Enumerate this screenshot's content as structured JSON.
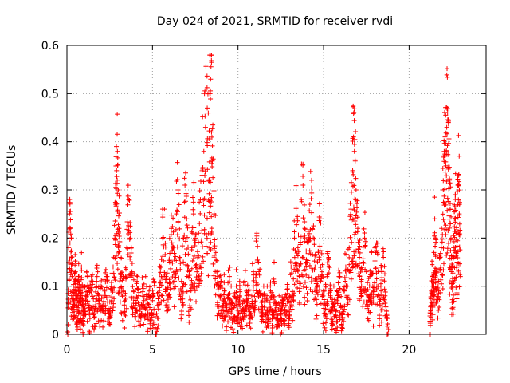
{
  "chart_data": {
    "type": "scatter",
    "title": "Day 024 of 2021, SRMTID for receiver rvdi",
    "xlabel": "GPS time / hours",
    "ylabel": "SRMTID / TECUs",
    "xlim": [
      0,
      24.5
    ],
    "ylim": [
      0,
      0.6
    ],
    "xticks": [
      0,
      5,
      10,
      15,
      20
    ],
    "xtick_labels": [
      "0",
      "5",
      "10",
      "15",
      "20"
    ],
    "yticks": [
      0,
      0.1,
      0.2,
      0.3,
      0.4,
      0.5,
      0.6
    ],
    "ytick_labels": [
      "0",
      "0.1",
      "0.2",
      "0.3",
      "0.4",
      "0.5",
      "0.6"
    ],
    "grid": true,
    "marker": "+",
    "series_color": "#ff0000",
    "series": [
      {
        "name": "rvdi",
        "points": [
          [
            0.05,
            0.0
          ],
          [
            0.1,
            0.18
          ],
          [
            0.15,
            0.25
          ],
          [
            0.2,
            0.22
          ],
          [
            0.25,
            0.16
          ],
          [
            0.3,
            0.12
          ],
          [
            0.35,
            0.09
          ],
          [
            0.4,
            0.07
          ],
          [
            0.45,
            0.11
          ],
          [
            0.5,
            0.13
          ],
          [
            0.55,
            0.08
          ],
          [
            0.6,
            0.06
          ],
          [
            0.65,
            0.1
          ],
          [
            0.7,
            0.12
          ],
          [
            0.75,
            0.05
          ],
          [
            0.8,
            0.09
          ],
          [
            0.85,
            0.14
          ],
          [
            0.9,
            0.07
          ],
          [
            0.95,
            0.04
          ],
          [
            1.0,
            0.1
          ],
          [
            1.1,
            0.08
          ],
          [
            1.2,
            0.12
          ],
          [
            1.3,
            0.06
          ],
          [
            1.4,
            0.09
          ],
          [
            1.5,
            0.11
          ],
          [
            1.6,
            0.05
          ],
          [
            1.7,
            0.08
          ],
          [
            1.8,
            0.13
          ],
          [
            1.9,
            0.07
          ],
          [
            2.0,
            0.1
          ],
          [
            2.1,
            0.06
          ],
          [
            2.2,
            0.09
          ],
          [
            2.3,
            0.12
          ],
          [
            2.4,
            0.08
          ],
          [
            2.5,
            0.05
          ],
          [
            2.6,
            0.1
          ],
          [
            2.7,
            0.14
          ],
          [
            2.8,
            0.2
          ],
          [
            2.85,
            0.27
          ],
          [
            2.9,
            0.34
          ],
          [
            2.95,
            0.38
          ],
          [
            3.0,
            0.3
          ],
          [
            3.05,
            0.22
          ],
          [
            3.1,
            0.16
          ],
          [
            3.2,
            0.12
          ],
          [
            3.3,
            0.09
          ],
          [
            3.4,
            0.07
          ],
          [
            3.5,
            0.18
          ],
          [
            3.6,
            0.28
          ],
          [
            3.7,
            0.2
          ],
          [
            3.8,
            0.13
          ],
          [
            3.9,
            0.09
          ],
          [
            4.0,
            0.06
          ],
          [
            4.1,
            0.11
          ],
          [
            4.2,
            0.08
          ],
          [
            4.3,
            0.04
          ],
          [
            4.4,
            0.1
          ],
          [
            4.5,
            0.07
          ],
          [
            4.6,
            0.12
          ],
          [
            4.7,
            0.05
          ],
          [
            4.8,
            0.09
          ],
          [
            4.9,
            0.03
          ],
          [
            5.0,
            0.07
          ],
          [
            5.1,
            0.11
          ],
          [
            5.2,
            0.0
          ],
          [
            5.3,
            0.06
          ],
          [
            5.4,
            0.1
          ],
          [
            5.5,
            0.14
          ],
          [
            5.6,
            0.2
          ],
          [
            5.7,
            0.26
          ],
          [
            5.8,
            0.12
          ],
          [
            5.9,
            0.08
          ],
          [
            6.0,
            0.15
          ],
          [
            6.1,
            0.22
          ],
          [
            6.2,
            0.18
          ],
          [
            6.3,
            0.1
          ],
          [
            6.4,
            0.25
          ],
          [
            6.5,
            0.3
          ],
          [
            6.6,
            0.16
          ],
          [
            6.7,
            0.11
          ],
          [
            6.8,
            0.2
          ],
          [
            6.9,
            0.31
          ],
          [
            7.0,
            0.24
          ],
          [
            7.1,
            0.14
          ],
          [
            7.2,
            0.09
          ],
          [
            7.3,
            0.18
          ],
          [
            7.4,
            0.25
          ],
          [
            7.5,
            0.2
          ],
          [
            7.6,
            0.13
          ],
          [
            7.7,
            0.21
          ],
          [
            7.8,
            0.28
          ],
          [
            7.9,
            0.34
          ],
          [
            8.0,
            0.38
          ],
          [
            8.1,
            0.43
          ],
          [
            8.2,
            0.47
          ],
          [
            8.3,
            0.32
          ],
          [
            8.35,
            0.5
          ],
          [
            8.4,
            0.53
          ],
          [
            8.45,
            0.565
          ],
          [
            8.5,
            0.36
          ],
          [
            8.6,
            0.25
          ],
          [
            8.7,
            0.17
          ],
          [
            8.8,
            0.12
          ],
          [
            8.9,
            0.08
          ],
          [
            9.0,
            0.11
          ],
          [
            9.1,
            0.06
          ],
          [
            9.2,
            0.09
          ],
          [
            9.3,
            0.05
          ],
          [
            9.4,
            0.08
          ],
          [
            9.5,
            0.12
          ],
          [
            9.6,
            0.07
          ],
          [
            9.7,
            0.03
          ],
          [
            9.8,
            0.06
          ],
          [
            9.9,
            0.1
          ],
          [
            10.0,
            0.05
          ],
          [
            10.1,
            0.08
          ],
          [
            10.2,
            0.03
          ],
          [
            10.3,
            0.07
          ],
          [
            10.4,
            0.11
          ],
          [
            10.5,
            0.06
          ],
          [
            10.6,
            0.09
          ],
          [
            10.7,
            0.04
          ],
          [
            10.8,
            0.08
          ],
          [
            10.9,
            0.13
          ],
          [
            11.0,
            0.06
          ],
          [
            11.1,
            0.21
          ],
          [
            11.2,
            0.15
          ],
          [
            11.3,
            0.08
          ],
          [
            11.4,
            0.05
          ],
          [
            11.5,
            0.1
          ],
          [
            11.6,
            0.04
          ],
          [
            11.7,
            0.07
          ],
          [
            11.8,
            0.03
          ],
          [
            11.9,
            0.09
          ],
          [
            12.0,
            0.05
          ],
          [
            12.1,
            0.11
          ],
          [
            12.2,
            0.06
          ],
          [
            12.3,
            0.02
          ],
          [
            12.4,
            0.08
          ],
          [
            12.5,
            0.04
          ],
          [
            12.6,
            0.07
          ],
          [
            12.7,
            0.03
          ],
          [
            12.8,
            0.06
          ],
          [
            12.9,
            0.1
          ],
          [
            13.0,
            0.05
          ],
          [
            13.1,
            0.14
          ],
          [
            13.2,
            0.08
          ],
          [
            13.3,
            0.2
          ],
          [
            13.4,
            0.24
          ],
          [
            13.5,
            0.18
          ],
          [
            13.6,
            0.12
          ],
          [
            13.7,
            0.28
          ],
          [
            13.8,
            0.31
          ],
          [
            13.9,
            0.22
          ],
          [
            14.0,
            0.15
          ],
          [
            14.1,
            0.19
          ],
          [
            14.2,
            0.27
          ],
          [
            14.3,
            0.32
          ],
          [
            14.4,
            0.2
          ],
          [
            14.5,
            0.14
          ],
          [
            14.6,
            0.1
          ],
          [
            14.7,
            0.17
          ],
          [
            14.8,
            0.24
          ],
          [
            14.9,
            0.13
          ],
          [
            15.0,
            0.09
          ],
          [
            15.1,
            0.06
          ],
          [
            15.2,
            0.12
          ],
          [
            15.3,
            0.16
          ],
          [
            15.4,
            0.08
          ],
          [
            15.5,
            0.05
          ],
          [
            15.6,
            0.1
          ],
          [
            15.7,
            0.04
          ],
          [
            15.8,
            0.07
          ],
          [
            15.9,
            0.12
          ],
          [
            16.0,
            0.06
          ],
          [
            16.1,
            0.03
          ],
          [
            16.2,
            0.09
          ],
          [
            16.3,
            0.14
          ],
          [
            16.4,
            0.1
          ],
          [
            16.5,
            0.18
          ],
          [
            16.6,
            0.26
          ],
          [
            16.7,
            0.34
          ],
          [
            16.75,
            0.41
          ],
          [
            16.8,
            0.38
          ],
          [
            16.85,
            0.36
          ],
          [
            16.9,
            0.3
          ],
          [
            17.0,
            0.22
          ],
          [
            17.1,
            0.16
          ],
          [
            17.2,
            0.11
          ],
          [
            17.3,
            0.15
          ],
          [
            17.4,
            0.2
          ],
          [
            17.5,
            0.13
          ],
          [
            17.6,
            0.08
          ],
          [
            17.7,
            0.12
          ],
          [
            17.8,
            0.17
          ],
          [
            17.9,
            0.09
          ],
          [
            18.0,
            0.14
          ],
          [
            18.1,
            0.19
          ],
          [
            18.2,
            0.1
          ],
          [
            18.3,
            0.06
          ],
          [
            18.4,
            0.13
          ],
          [
            18.5,
            0.16
          ],
          [
            18.6,
            0.08
          ],
          [
            18.7,
            0.04
          ],
          [
            18.8,
            0.01
          ],
          [
            21.2,
            0.0
          ],
          [
            21.25,
            0.05
          ],
          [
            21.3,
            0.09
          ],
          [
            21.35,
            0.12
          ],
          [
            21.4,
            0.08
          ],
          [
            21.45,
            0.17
          ],
          [
            21.5,
            0.24
          ],
          [
            21.55,
            0.2
          ],
          [
            21.6,
            0.13
          ],
          [
            21.7,
            0.1
          ],
          [
            21.8,
            0.16
          ],
          [
            21.9,
            0.22
          ],
          [
            22.0,
            0.3
          ],
          [
            22.05,
            0.38
          ],
          [
            22.1,
            0.41
          ],
          [
            22.15,
            0.35
          ],
          [
            22.2,
            0.43
          ],
          [
            22.25,
            0.46
          ],
          [
            22.3,
            0.44
          ],
          [
            22.35,
            0.32
          ],
          [
            22.4,
            0.26
          ],
          [
            22.45,
            0.2
          ],
          [
            22.5,
            0.14
          ],
          [
            22.55,
            0.1
          ],
          [
            22.6,
            0.18
          ],
          [
            22.65,
            0.24
          ],
          [
            22.7,
            0.29
          ],
          [
            22.75,
            0.21
          ],
          [
            22.8,
            0.15
          ],
          [
            22.85,
            0.31
          ],
          [
            22.9,
            0.33
          ],
          [
            22.95,
            0.27
          ],
          [
            23.0,
            0.12
          ]
        ]
      }
    ]
  }
}
